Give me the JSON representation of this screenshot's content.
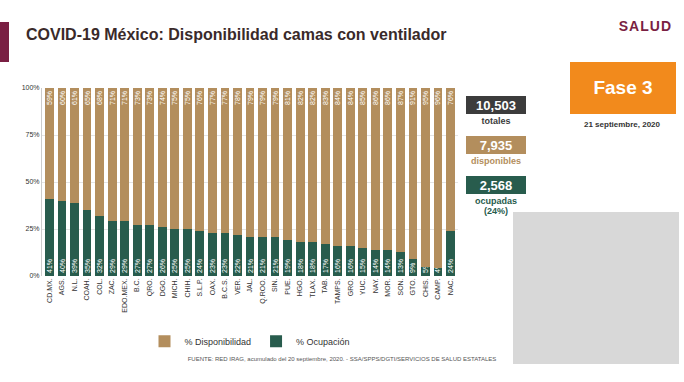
{
  "chart_data": {
    "type": "bar",
    "title": "COVID-19 México: Disponibilidad camas con ventilador",
    "categories": [
      "CD.MX.",
      "AGS.",
      "N.L.",
      "COAH.",
      "COL.",
      "ZAC.",
      "EDO.MEX.",
      "B.C.",
      "QRO.",
      "DGO.",
      "MICH.",
      "CHIH.",
      "S.L.P.",
      "OAX.",
      "B.C.S.",
      "VER.",
      "JAL.",
      "Q.ROO.",
      "SIN.",
      "PUE.",
      "HGO.",
      "TLAX.",
      "TAB.",
      "TAMPS.",
      "GRO.",
      "YUC.",
      "NAY.",
      "MOR.",
      "SON.",
      "GTO.",
      "CHIS.",
      "CAMP.",
      "NAC."
    ],
    "series": [
      {
        "name": "% Ocupación",
        "color": "#285c4d",
        "values": [
          41,
          40,
          39,
          35,
          32,
          29,
          29,
          27,
          27,
          26,
          25,
          25,
          24,
          23,
          23,
          22,
          21,
          21,
          21,
          19,
          18,
          18,
          17,
          16,
          16,
          15,
          14,
          14,
          13,
          9,
          5,
          4,
          24
        ],
        "value_labels": [
          "41%",
          "40%",
          "39%",
          "35%",
          "32%",
          "29%",
          "29%",
          "27%",
          "27%",
          "26%",
          "25%",
          "25%",
          "24%",
          "23%",
          "23%",
          "22%",
          "21%",
          "21%",
          "21%",
          "19%",
          "18%",
          "18%",
          "17%",
          "16%",
          "16%",
          "15%",
          "14%",
          "14%",
          "13%",
          "9%",
          "5%",
          "4%",
          "24%"
        ]
      },
      {
        "name": "% Disponibilidad",
        "color": "#b38e5d",
        "values": [
          59,
          60,
          61,
          65,
          68,
          71,
          71,
          73,
          73,
          74,
          75,
          75,
          76,
          77,
          77,
          78,
          79,
          79,
          79,
          81,
          82,
          82,
          83,
          84,
          84,
          85,
          86,
          86,
          87,
          91,
          95,
          96,
          76
        ],
        "value_labels": [
          "59%",
          "60%",
          "61%",
          "65%",
          "68%",
          "71%",
          "71%",
          "73%",
          "73%",
          "74%",
          "75%",
          "75%",
          "76%",
          "77%",
          "77%",
          "78%",
          "79%",
          "79%",
          "79%",
          "81%",
          "82%",
          "82%",
          "83%",
          "84%",
          "84%",
          "85%",
          "86%",
          "86%",
          "87%",
          "91%",
          "95%",
          "96%",
          "76%"
        ]
      }
    ],
    "ylim": [
      0,
      100
    ],
    "yticks": [
      {
        "value": 0,
        "label": "0%"
      },
      {
        "value": 25,
        "label": "25%"
      },
      {
        "value": 50,
        "label": "50%"
      },
      {
        "value": 75,
        "label": "75%"
      },
      {
        "value": 100,
        "label": "100%"
      }
    ],
    "stacked": true,
    "data_labels": true,
    "legend": "bottom",
    "grid": true
  },
  "header": {
    "logo": "SALUD",
    "phase": "Fase 3",
    "date": "21 septiembre, 2020"
  },
  "summary": [
    {
      "value": "10,503",
      "label": "totales"
    },
    {
      "value": "7,935",
      "label": "disponibles"
    },
    {
      "value": "2,568",
      "label": "ocupadas (24%)"
    }
  ],
  "source": "FUENTE: RED IRAG, acumulado del 20 septiembre, 2020. - SSA/SPPS/DGTI/SERVICIOS DE SALUD ESTATALES"
}
